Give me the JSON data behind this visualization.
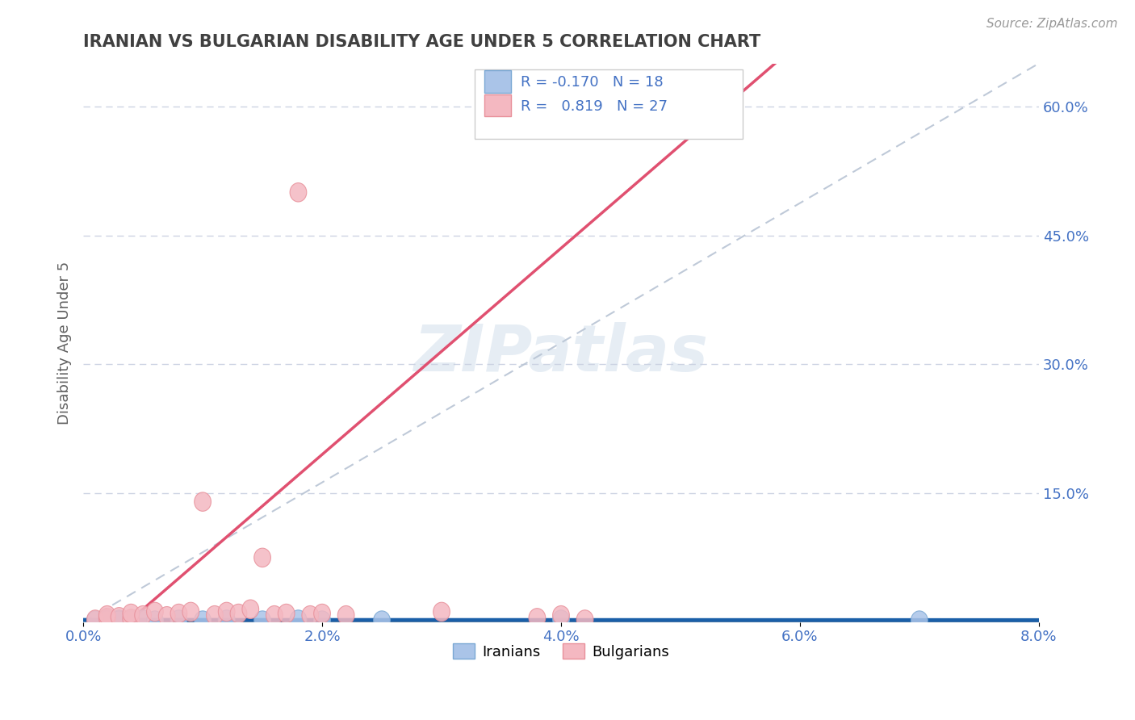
{
  "title": "IRANIAN VS BULGARIAN DISABILITY AGE UNDER 5 CORRELATION CHART",
  "source_text": "Source: ZipAtlas.com",
  "xlabel": "",
  "ylabel": "Disability Age Under 5",
  "xlim": [
    0.0,
    0.08
  ],
  "ylim": [
    0.0,
    0.65
  ],
  "xtick_labels": [
    "0.0%",
    "2.0%",
    "4.0%",
    "6.0%",
    "8.0%"
  ],
  "xtick_values": [
    0.0,
    0.02,
    0.04,
    0.06,
    0.08
  ],
  "ytick_labels": [
    "15.0%",
    "30.0%",
    "45.0%",
    "60.0%"
  ],
  "ytick_values": [
    0.15,
    0.3,
    0.45,
    0.6
  ],
  "iranian_color": "#aac4e8",
  "bulgarian_color": "#f4b8c1",
  "iranian_edge_color": "#7aa8d4",
  "bulgarian_edge_color": "#e8909a",
  "iranian_line_color": "#1a5fa8",
  "bulgarian_line_color": "#e05070",
  "ref_line_color": "#b8c4d4",
  "grid_color": "#c8cfe0",
  "r_iranian": -0.17,
  "n_iranian": 18,
  "r_bulgarian": 0.819,
  "n_bulgarian": 27,
  "legend_label_iranian": "Iranians",
  "legend_label_bulgarian": "Bulgarians",
  "watermark": "ZIPatlas",
  "watermark_color": "#c8d8e8",
  "iranian_x": [
    0.001,
    0.002,
    0.002,
    0.003,
    0.003,
    0.004,
    0.004,
    0.005,
    0.006,
    0.008,
    0.01,
    0.012,
    0.015,
    0.018,
    0.02,
    0.025,
    0.04,
    0.07
  ],
  "iranian_y": [
    0.002,
    0.003,
    0.002,
    0.003,
    0.002,
    0.003,
    0.002,
    0.003,
    0.002,
    0.003,
    0.002,
    0.003,
    0.002,
    0.003,
    0.002,
    0.002,
    0.003,
    0.002
  ],
  "bulgarian_x": [
    0.001,
    0.002,
    0.002,
    0.003,
    0.004,
    0.004,
    0.005,
    0.006,
    0.007,
    0.008,
    0.009,
    0.01,
    0.011,
    0.012,
    0.013,
    0.014,
    0.015,
    0.016,
    0.017,
    0.018,
    0.019,
    0.02,
    0.022,
    0.03,
    0.038,
    0.04,
    0.042
  ],
  "bulgarian_y": [
    0.003,
    0.005,
    0.008,
    0.006,
    0.004,
    0.01,
    0.008,
    0.012,
    0.007,
    0.01,
    0.012,
    0.14,
    0.008,
    0.012,
    0.01,
    0.015,
    0.075,
    0.008,
    0.01,
    0.5,
    0.008,
    0.01,
    0.008,
    0.012,
    0.005,
    0.008,
    0.003
  ],
  "background_color": "#ffffff",
  "title_color": "#404040",
  "axis_label_color": "#606060",
  "tick_label_color": "#4472c4",
  "legend_r_color": "#4472c4",
  "right_axis_color": "#4472c4"
}
